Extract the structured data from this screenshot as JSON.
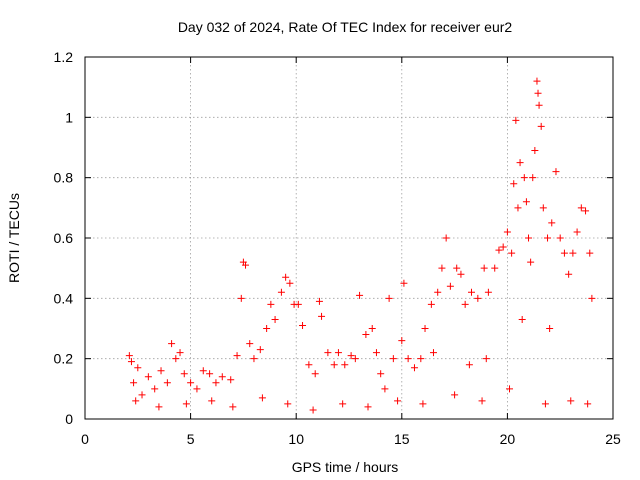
{
  "chart_data": {
    "type": "scatter",
    "title": "Day 032 of 2024, Rate Of TEC Index for receiver eur2",
    "xlabel": "GPS time / hours",
    "ylabel": "ROTI / TECUs",
    "xlim": [
      0,
      25
    ],
    "ylim": [
      0,
      1.2
    ],
    "xticks": [
      0,
      5,
      10,
      15,
      20,
      25
    ],
    "xtick_labels": [
      "0",
      "5",
      "10",
      "15",
      "20",
      "25"
    ],
    "yticks": [
      0,
      0.2,
      0.4,
      0.6,
      0.8,
      1.0,
      1.2
    ],
    "ytick_labels": [
      "0",
      "0.2",
      "0.4",
      "0.6",
      "0.8",
      "1",
      "1.2"
    ],
    "grid": true,
    "marker": "+",
    "series_color": "#ff0000",
    "series": [
      {
        "name": "eur2",
        "points": [
          [
            2.1,
            0.21
          ],
          [
            2.2,
            0.19
          ],
          [
            2.3,
            0.12
          ],
          [
            2.5,
            0.17
          ],
          [
            2.7,
            0.08
          ],
          [
            3.0,
            0.14
          ],
          [
            3.3,
            0.1
          ],
          [
            3.6,
            0.16
          ],
          [
            3.9,
            0.12
          ],
          [
            4.1,
            0.25
          ],
          [
            4.3,
            0.2
          ],
          [
            4.5,
            0.22
          ],
          [
            4.7,
            0.15
          ],
          [
            5.0,
            0.12
          ],
          [
            5.3,
            0.1
          ],
          [
            5.6,
            0.16
          ],
          [
            5.9,
            0.15
          ],
          [
            6.2,
            0.12
          ],
          [
            6.5,
            0.14
          ],
          [
            6.9,
            0.13
          ],
          [
            7.2,
            0.21
          ],
          [
            7.4,
            0.4
          ],
          [
            7.5,
            0.52
          ],
          [
            7.6,
            0.51
          ],
          [
            7.8,
            0.25
          ],
          [
            8.0,
            0.2
          ],
          [
            8.3,
            0.23
          ],
          [
            8.6,
            0.3
          ],
          [
            8.8,
            0.38
          ],
          [
            9.0,
            0.33
          ],
          [
            9.3,
            0.42
          ],
          [
            9.5,
            0.47
          ],
          [
            9.7,
            0.45
          ],
          [
            9.9,
            0.38
          ],
          [
            10.1,
            0.38
          ],
          [
            10.3,
            0.31
          ],
          [
            10.6,
            0.18
          ],
          [
            10.9,
            0.15
          ],
          [
            11.1,
            0.39
          ],
          [
            11.2,
            0.34
          ],
          [
            11.5,
            0.22
          ],
          [
            11.8,
            0.18
          ],
          [
            12.0,
            0.22
          ],
          [
            12.3,
            0.18
          ],
          [
            12.6,
            0.21
          ],
          [
            12.8,
            0.2
          ],
          [
            13.0,
            0.41
          ],
          [
            13.3,
            0.28
          ],
          [
            13.6,
            0.3
          ],
          [
            13.8,
            0.22
          ],
          [
            14.0,
            0.15
          ],
          [
            14.2,
            0.1
          ],
          [
            14.4,
            0.4
          ],
          [
            14.6,
            0.2
          ],
          [
            15.0,
            0.26
          ],
          [
            15.1,
            0.45
          ],
          [
            15.3,
            0.2
          ],
          [
            15.6,
            0.17
          ],
          [
            15.9,
            0.2
          ],
          [
            16.1,
            0.3
          ],
          [
            16.4,
            0.38
          ],
          [
            16.7,
            0.42
          ],
          [
            16.9,
            0.5
          ],
          [
            17.1,
            0.6
          ],
          [
            17.3,
            0.44
          ],
          [
            17.6,
            0.5
          ],
          [
            17.8,
            0.48
          ],
          [
            18.0,
            0.38
          ],
          [
            18.3,
            0.42
          ],
          [
            18.6,
            0.4
          ],
          [
            18.9,
            0.5
          ],
          [
            19.1,
            0.42
          ],
          [
            19.4,
            0.5
          ],
          [
            19.6,
            0.56
          ],
          [
            19.8,
            0.57
          ],
          [
            20.0,
            0.62
          ],
          [
            20.2,
            0.55
          ],
          [
            20.3,
            0.78
          ],
          [
            20.4,
            0.99
          ],
          [
            20.5,
            0.7
          ],
          [
            20.6,
            0.85
          ],
          [
            20.8,
            0.8
          ],
          [
            20.9,
            0.72
          ],
          [
            21.0,
            0.6
          ],
          [
            21.1,
            0.52
          ],
          [
            21.2,
            0.8
          ],
          [
            21.3,
            0.89
          ],
          [
            21.4,
            1.12
          ],
          [
            21.45,
            1.08
          ],
          [
            21.5,
            1.04
          ],
          [
            21.6,
            0.97
          ],
          [
            21.7,
            0.7
          ],
          [
            21.9,
            0.6
          ],
          [
            22.1,
            0.65
          ],
          [
            22.3,
            0.82
          ],
          [
            22.5,
            0.6
          ],
          [
            22.7,
            0.55
          ],
          [
            22.9,
            0.48
          ],
          [
            23.1,
            0.55
          ],
          [
            23.3,
            0.62
          ],
          [
            23.5,
            0.7
          ],
          [
            23.7,
            0.69
          ],
          [
            23.9,
            0.55
          ],
          [
            24.0,
            0.4
          ],
          [
            2.4,
            0.06
          ],
          [
            3.5,
            0.04
          ],
          [
            4.8,
            0.05
          ],
          [
            6.0,
            0.06
          ],
          [
            7.0,
            0.04
          ],
          [
            8.4,
            0.07
          ],
          [
            9.6,
            0.05
          ],
          [
            10.8,
            0.03
          ],
          [
            12.2,
            0.05
          ],
          [
            13.4,
            0.04
          ],
          [
            14.8,
            0.06
          ],
          [
            16.0,
            0.05
          ],
          [
            17.5,
            0.08
          ],
          [
            18.8,
            0.06
          ],
          [
            20.1,
            0.1
          ],
          [
            21.8,
            0.05
          ],
          [
            23.0,
            0.06
          ],
          [
            23.8,
            0.05
          ],
          [
            19.0,
            0.2
          ],
          [
            20.7,
            0.33
          ],
          [
            22.0,
            0.3
          ],
          [
            16.5,
            0.22
          ],
          [
            18.2,
            0.18
          ]
        ]
      }
    ]
  }
}
